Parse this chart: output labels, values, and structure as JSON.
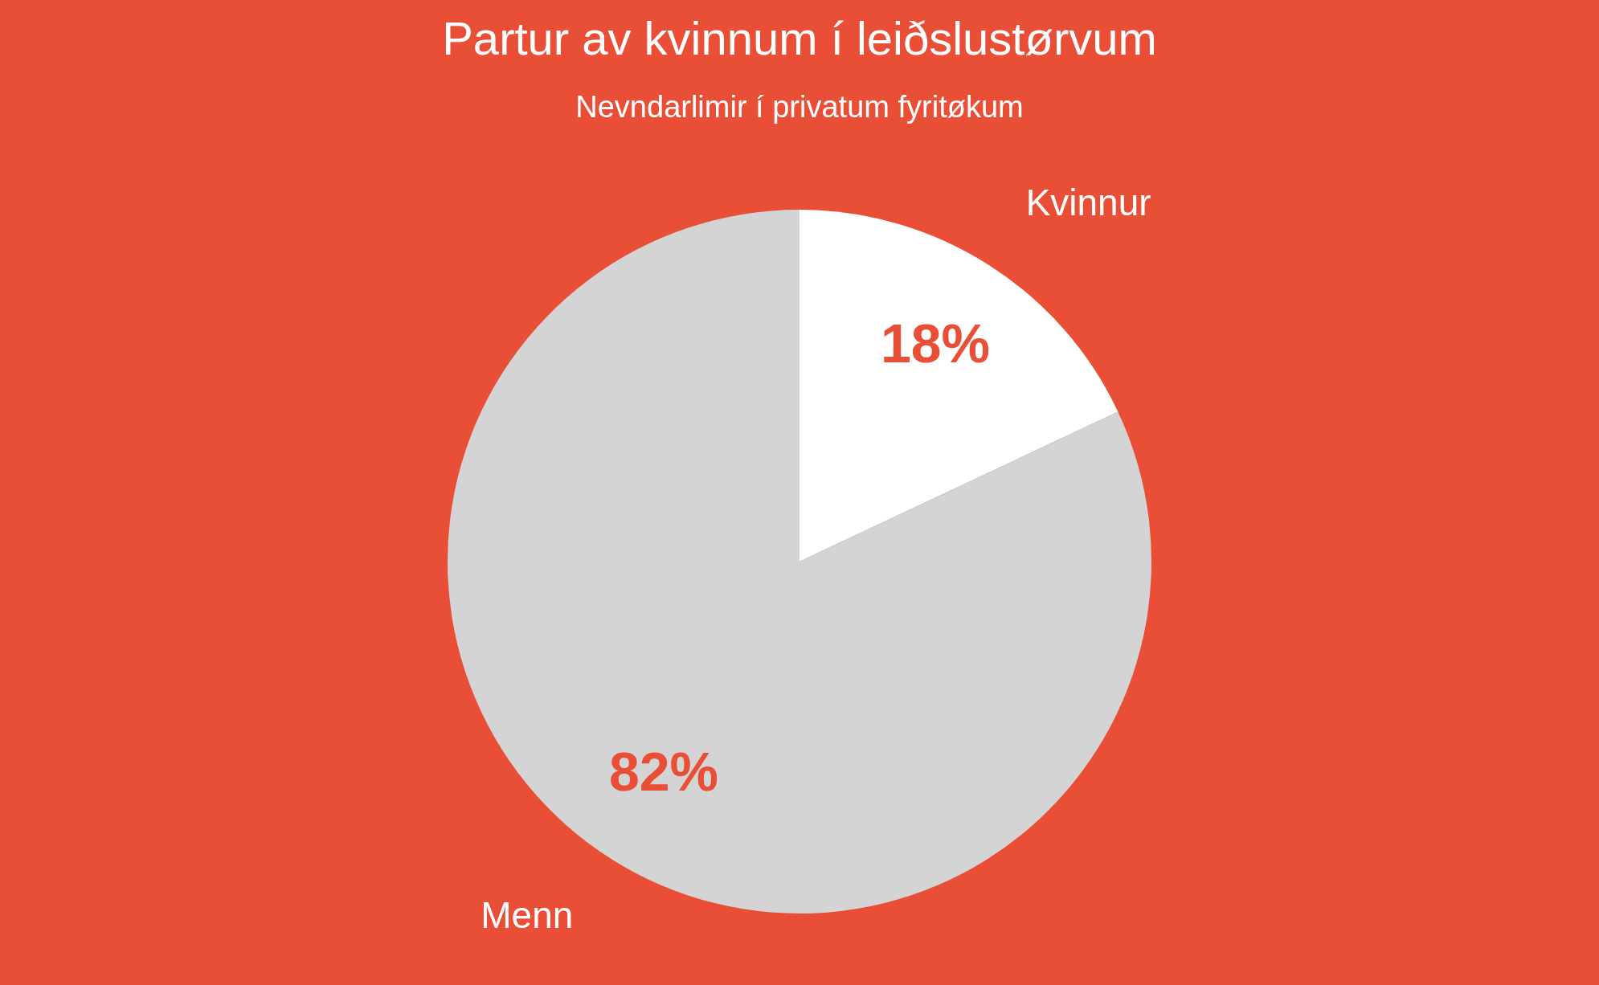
{
  "chart_data": {
    "type": "pie",
    "title": "Partur av kvinnum í leiðslustørvum",
    "subtitle": "Nevndarlimir í privatum fyritøkum",
    "categories": [
      "Kvinnur",
      "Menn"
    ],
    "values": [
      18,
      82
    ],
    "colors": [
      "#ffffff",
      "#d4d4d4"
    ],
    "value_labels": [
      "18%",
      "82%"
    ],
    "legend": false
  }
}
